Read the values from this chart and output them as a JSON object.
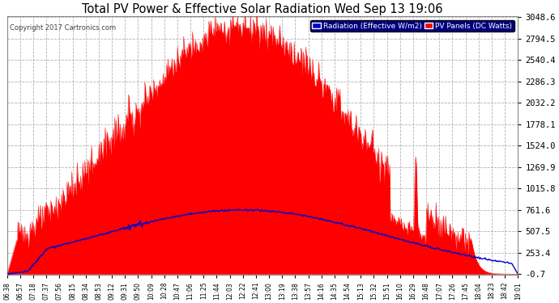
{
  "title": "Total PV Power & Effective Solar Radiation Wed Sep 13 19:06",
  "copyright": "Copyright 2017 Cartronics.com",
  "legend_radiation": "Radiation (Effective W/m2)",
  "legend_pv": "PV Panels (DC Watts)",
  "ymin": -0.7,
  "ymax": 3048.6,
  "yticks": [
    -0.7,
    253.4,
    507.5,
    761.6,
    1015.8,
    1269.9,
    1524.0,
    1778.1,
    2032.2,
    2286.3,
    2540.4,
    2794.5,
    3048.6
  ],
  "xtick_labels": [
    "06:38",
    "06:57",
    "07:18",
    "07:37",
    "07:56",
    "08:15",
    "08:34",
    "08:53",
    "09:12",
    "09:31",
    "09:50",
    "10:09",
    "10:28",
    "10:47",
    "11:06",
    "11:25",
    "11:44",
    "12:03",
    "12:22",
    "12:41",
    "13:00",
    "13:19",
    "13:38",
    "13:57",
    "14:16",
    "14:35",
    "14:54",
    "15:13",
    "15:32",
    "15:51",
    "16:10",
    "16:29",
    "16:48",
    "17:07",
    "17:26",
    "17:45",
    "18:04",
    "18:23",
    "18:42",
    "19:01"
  ],
  "bg_color": "#ffffff",
  "plot_bg_color": "#ffffff",
  "grid_color": "#aaaaaa",
  "title_color": "#000000",
  "radiation_color": "#0000cc",
  "pv_fill_color": "#ff0000",
  "legend_radiation_bg": "#0000cc",
  "legend_pv_bg": "#ff0000"
}
